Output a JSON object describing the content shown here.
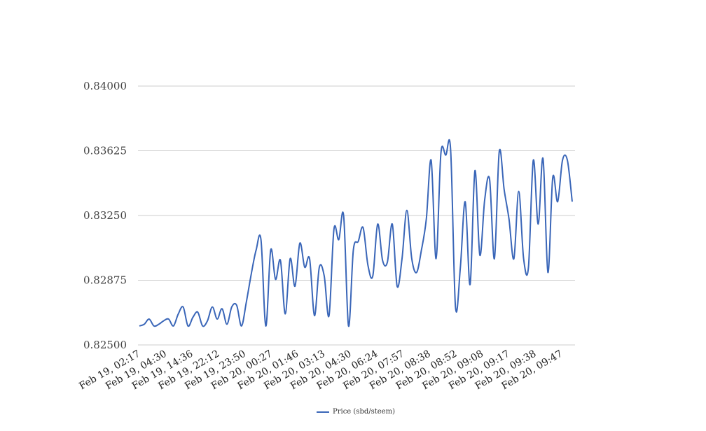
{
  "chart_data": {
    "type": "line",
    "ylim": [
      0.825,
      0.84
    ],
    "yticks": [
      "0.82500",
      "0.82875",
      "0.83250",
      "0.83625",
      "0.84000"
    ],
    "ytick_values": [
      0.825,
      0.82875,
      0.8325,
      0.83625,
      0.84
    ],
    "xtick_labels": [
      "Feb 19, 02:17",
      "Feb 19, 04:30",
      "Feb 19, 14:36",
      "Feb 19, 22:12",
      "Feb 19, 23:50",
      "Feb 20, 00:27",
      "Feb 20, 01:46",
      "Feb 20, 03:13",
      "Feb 20, 04:30",
      "Feb 20, 06:24",
      "Feb 20, 07:57",
      "Feb 20, 08:38",
      "Feb 20, 08:52",
      "Feb 20, 09:08",
      "Feb 20, 09:17",
      "Feb 20, 09:38",
      "Feb 20, 09:47"
    ],
    "grid": true,
    "legend_position": "bottom",
    "series": [
      {
        "name": "Price (sbd/steem)",
        "color": "#3a66b8",
        "values": [
          0.8261,
          0.8262,
          0.8265,
          0.8261,
          0.8262,
          0.8264,
          0.8265,
          0.8261,
          0.8268,
          0.8272,
          0.8261,
          0.8266,
          0.8269,
          0.8261,
          0.8264,
          0.8272,
          0.8265,
          0.8271,
          0.8262,
          0.8272,
          0.8273,
          0.8261,
          0.8275,
          0.8291,
          0.8305,
          0.8311,
          0.8261,
          0.8305,
          0.8288,
          0.8299,
          0.8268,
          0.83,
          0.8284,
          0.8309,
          0.8295,
          0.83,
          0.8267,
          0.8295,
          0.829,
          0.8267,
          0.8317,
          0.8311,
          0.8325,
          0.8261,
          0.8305,
          0.831,
          0.8318,
          0.8296,
          0.829,
          0.832,
          0.8299,
          0.8298,
          0.832,
          0.8284,
          0.83,
          0.8328,
          0.83,
          0.8292,
          0.8305,
          0.8323,
          0.8357,
          0.83,
          0.8361,
          0.836,
          0.8363,
          0.8272,
          0.8295,
          0.8333,
          0.8285,
          0.8351,
          0.8302,
          0.8334,
          0.8346,
          0.83,
          0.8362,
          0.834,
          0.8323,
          0.83,
          0.8339,
          0.83,
          0.8295,
          0.8357,
          0.832,
          0.8358,
          0.8292,
          0.8347,
          0.8333,
          0.8357,
          0.8357,
          0.8333
        ]
      }
    ]
  }
}
